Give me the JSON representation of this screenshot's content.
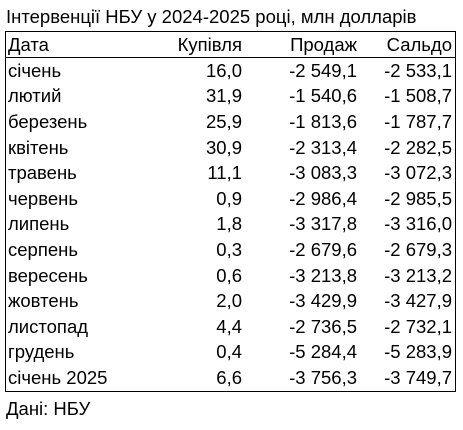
{
  "title": "Інтервенції НБУ у 2024-2025 році, млн долларів",
  "table": {
    "headers": [
      "Дата",
      "Купівля",
      "Продаж",
      "Сальдо"
    ],
    "rows": [
      [
        "січень",
        "16,0",
        "-2 549,1",
        "-2 533,1"
      ],
      [
        "лютий",
        "31,9",
        "-1 540,6",
        "-1 508,7"
      ],
      [
        "березень",
        "25,9",
        "-1 813,6",
        "-1 787,7"
      ],
      [
        "квітень",
        "30,9",
        "-2 313,4",
        "-2 282,5"
      ],
      [
        "травень",
        "11,1",
        "-3 083,3",
        "-3 072,3"
      ],
      [
        "червень",
        "0,9",
        "-2 986,4",
        "-2 985,5"
      ],
      [
        "липень",
        "1,8",
        "-3 317,8",
        "-3 316,0"
      ],
      [
        "серпень",
        "0,3",
        "-2 679,6",
        "-2 679,3"
      ],
      [
        "вересень",
        "0,6",
        "-3 213,8",
        "-3 213,2"
      ],
      [
        "жовтень",
        "2,0",
        "-3 429,9",
        "-3 427,9"
      ],
      [
        "листопад",
        "4,4",
        "-2 736,5",
        "-2 732,1"
      ],
      [
        "грудень",
        "0,4",
        "-5 284,4",
        "-5 283,9"
      ],
      [
        "січень 2025",
        "6,6",
        "-3 756,3",
        "-3 749,7"
      ]
    ]
  },
  "source": "Дані: НБУ"
}
